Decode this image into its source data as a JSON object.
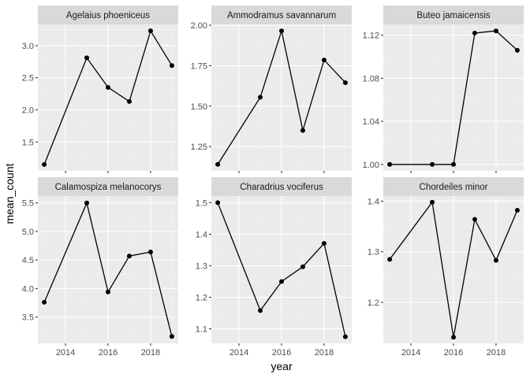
{
  "chart_data": {
    "type": "line",
    "xlabel": "year",
    "ylabel": "mean_count",
    "x_axis": {
      "range": [
        2012.7,
        2019.3
      ],
      "ticks": [
        2014,
        2016,
        2018
      ]
    },
    "facets": [
      {
        "title": "Agelaius phoeniceus",
        "x": [
          2013,
          2015,
          2016,
          2017,
          2018,
          2019
        ],
        "y": [
          1.15,
          2.81,
          2.35,
          2.13,
          3.23,
          2.69
        ],
        "ylim": [
          1.05,
          3.33
        ],
        "yticks": [
          1.5,
          2.0,
          2.5,
          3.0
        ],
        "yticklabels": [
          "1.5",
          "2.0",
          "2.5",
          "3.0"
        ]
      },
      {
        "title": "Ammodramus savannarum",
        "x": [
          2013,
          2015,
          2016,
          2017,
          2018,
          2019
        ],
        "y": [
          1.14,
          1.555,
          1.965,
          1.35,
          1.785,
          1.645
        ],
        "ylim": [
          1.1,
          2.005
        ],
        "yticks": [
          1.25,
          1.5,
          1.75,
          2.0
        ],
        "yticklabels": [
          "1.25",
          "1.50",
          "1.75",
          "2.00"
        ]
      },
      {
        "title": "Buteo jamaicensis",
        "x": [
          2013,
          2015,
          2016,
          2017,
          2018,
          2019
        ],
        "y": [
          1.0,
          1.0,
          1.0,
          1.122,
          1.124,
          1.106
        ],
        "ylim": [
          0.994,
          1.13
        ],
        "yticks": [
          1.0,
          1.04,
          1.08,
          1.12
        ],
        "yticklabels": [
          "1.00",
          "1.04",
          "1.08",
          "1.12"
        ]
      },
      {
        "title": "Calamospiza melanocorys",
        "x": [
          2013,
          2015,
          2016,
          2017,
          2018,
          2019
        ],
        "y": [
          3.76,
          5.5,
          3.94,
          4.57,
          4.64,
          3.16
        ],
        "ylim": [
          3.04,
          5.62
        ],
        "yticks": [
          3.5,
          4.0,
          4.5,
          5.0,
          5.5
        ],
        "yticklabels": [
          "3.5",
          "4.0",
          "4.5",
          "5.0",
          "5.5"
        ]
      },
      {
        "title": "Charadrius vociferus",
        "x": [
          2013,
          2015,
          2016,
          2017,
          2018,
          2019
        ],
        "y": [
          1.5,
          1.158,
          1.25,
          1.297,
          1.371,
          1.075
        ],
        "ylim": [
          1.054,
          1.521
        ],
        "yticks": [
          1.1,
          1.2,
          1.3,
          1.4,
          1.5
        ],
        "yticklabels": [
          "1.1",
          "1.2",
          "1.3",
          "1.4",
          "1.5"
        ]
      },
      {
        "title": "Chordeiles minor",
        "x": [
          2013,
          2015,
          2016,
          2017,
          2018,
          2019
        ],
        "y": [
          1.285,
          1.398,
          1.131,
          1.364,
          1.283,
          1.382
        ],
        "ylim": [
          1.119,
          1.41
        ],
        "yticks": [
          1.2,
          1.3,
          1.4
        ],
        "yticklabels": [
          "1.2",
          "1.3",
          "1.4"
        ]
      }
    ]
  }
}
